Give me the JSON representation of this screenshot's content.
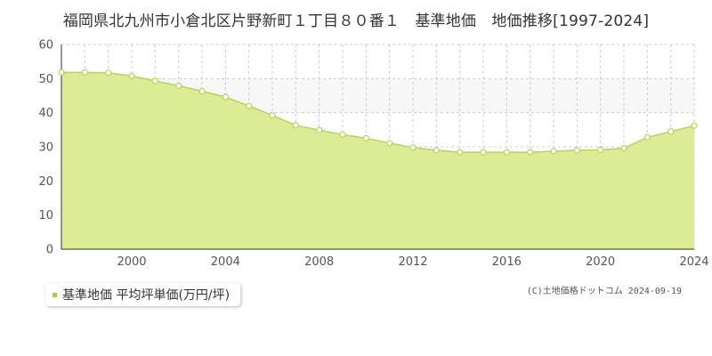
{
  "page": {
    "title": "福岡県北九州市小倉北区片野新町１丁目８０番１　基準地価　地価推移[1997-2024]",
    "credit": "(C)土地価格ドットコム 2024-09-19"
  },
  "colors": {
    "fill": "#dcec95",
    "line": "#b8d450",
    "marker_fill": "#ffffff",
    "marker_stroke": "#b8d450",
    "legend_marker": "#a8d030",
    "band": "#f7f7f7",
    "grid": "#cccccc",
    "axis": "#333333"
  },
  "legend": {
    "label": "基準地価 平均坪単価(万円/坪)"
  },
  "chart_data": {
    "type": "area",
    "title": "",
    "xlabel": "",
    "ylabel": "",
    "xlim": [
      1997,
      2024
    ],
    "ylim": [
      0,
      60
    ],
    "grid": true,
    "yticks": [
      0,
      10,
      20,
      30,
      40,
      50,
      60
    ],
    "xticks": [
      2000,
      2004,
      2008,
      2012,
      2016,
      2020,
      2024
    ],
    "legend_position": "bottom-left",
    "series": [
      {
        "name": "基準地価 平均坪単価(万円/坪)",
        "x": [
          1997,
          1998,
          1999,
          2000,
          2001,
          2002,
          2003,
          2004,
          2005,
          2006,
          2007,
          2008,
          2009,
          2010,
          2011,
          2012,
          2013,
          2014,
          2015,
          2016,
          2017,
          2018,
          2019,
          2020,
          2021,
          2022,
          2023,
          2024
        ],
        "values": [
          51.8,
          51.8,
          51.7,
          50.8,
          49.3,
          47.9,
          46.3,
          44.6,
          42.0,
          39.2,
          36.3,
          34.9,
          33.6,
          32.5,
          31.1,
          29.8,
          29.0,
          28.4,
          28.4,
          28.4,
          28.4,
          28.7,
          29.0,
          29.1,
          29.6,
          32.8,
          34.5,
          36.2
        ]
      }
    ]
  }
}
